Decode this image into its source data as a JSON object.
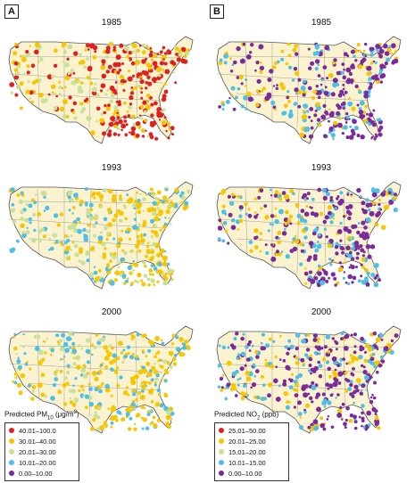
{
  "panels": [
    {
      "letter": "A",
      "legend": {
        "title_prefix": "Predicted PM",
        "title_sub": "10",
        "title_mid": " (μg/m",
        "title_sup": "3",
        "title_suffix": ")",
        "classes": [
          {
            "label": "40.01–100.0",
            "color": "#e01f1f"
          },
          {
            "label": "30.01–40.00",
            "color": "#f7c600"
          },
          {
            "label": "20.01–30.00",
            "color": "#c8e09a"
          },
          {
            "label": "10.01–20.00",
            "color": "#4fbfe8"
          },
          {
            "label": "0.00–10.00",
            "color": "#7a2a9a"
          }
        ]
      },
      "maps": [
        {
          "year": "1985",
          "palette": {
            "high": "#e01f1f",
            "mid": "#f7c600",
            "low": "#c8e09a"
          }
        },
        {
          "year": "1993",
          "palette": {
            "high": "#f7c600",
            "mid": "#c8e09a",
            "low": "#4fbfe8"
          }
        },
        {
          "year": "2000",
          "palette": {
            "high": "#f7c600",
            "mid": "#4fbfe8",
            "low": "#c8e09a"
          }
        }
      ]
    },
    {
      "letter": "B",
      "legend": {
        "title_prefix": "Predicted NO",
        "title_sub": "2",
        "title_mid": " (ppb)",
        "title_sup": "",
        "title_suffix": "",
        "classes": [
          {
            "label": "25.01–50.00",
            "color": "#e01f1f"
          },
          {
            "label": "20.01–25.00",
            "color": "#f7c600"
          },
          {
            "label": "15.01–20.00",
            "color": "#c8e09a"
          },
          {
            "label": "10.01–15.00",
            "color": "#4fbfe8"
          },
          {
            "label": "0.00–10.00",
            "color": "#7a2a9a"
          }
        ]
      },
      "maps": [
        {
          "year": "1985",
          "palette": {
            "high": "#7a2a9a",
            "mid": "#4fbfe8",
            "low": "#f7c600"
          }
        },
        {
          "year": "1993",
          "palette": {
            "high": "#7a2a9a",
            "mid": "#4fbfe8",
            "low": "#f7c600"
          }
        },
        {
          "year": "2000",
          "palette": {
            "high": "#7a2a9a",
            "mid": "#4fbfe8",
            "low": "#f7c600"
          }
        }
      ]
    }
  ],
  "colors": {
    "land": "#fbf3cf",
    "border": "#555555"
  }
}
